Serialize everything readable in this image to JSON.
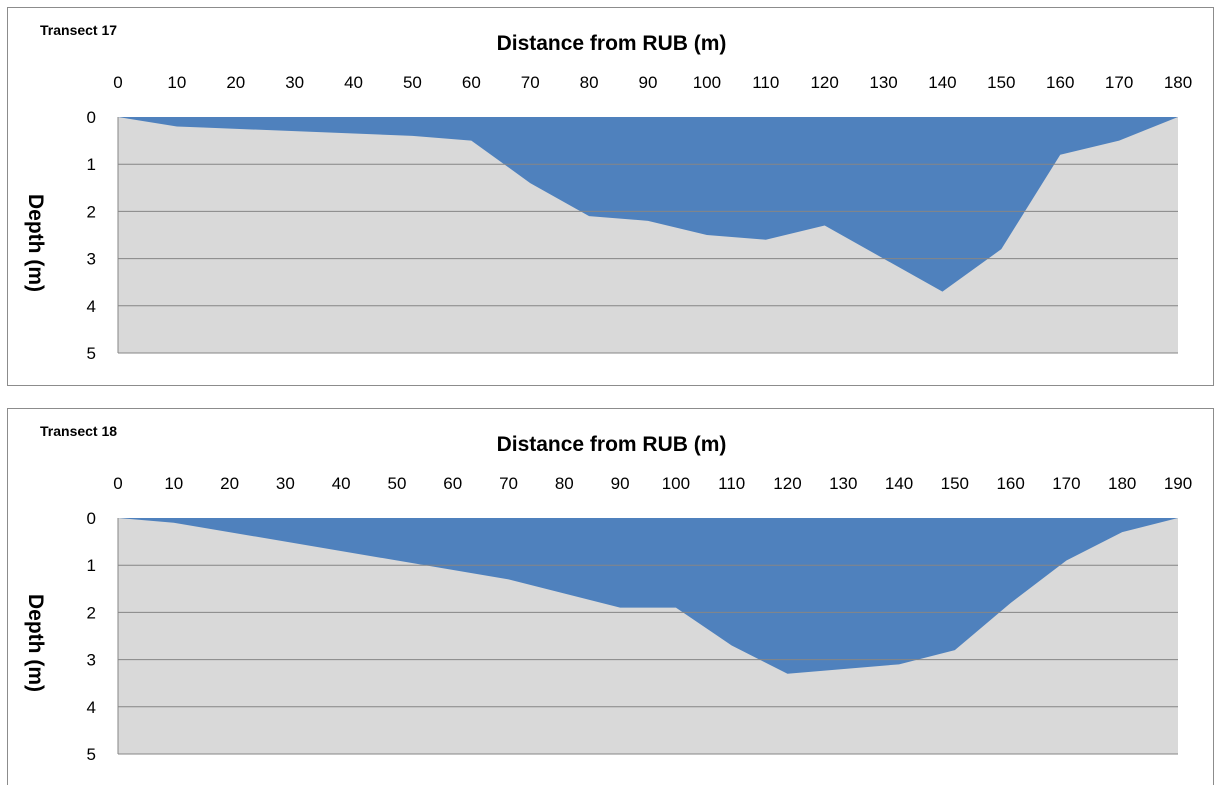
{
  "colors": {
    "water": "#4f81bd",
    "ground": "#d9d9d9",
    "gridline": "#868686",
    "text": "#000000"
  },
  "chart_data": [
    {
      "type": "area",
      "transect_label": "Transect 17",
      "xlabel": "Distance from RUB (m)",
      "ylabel": "Depth (m)",
      "xlim": [
        0,
        180
      ],
      "ylim": [
        0,
        5
      ],
      "x_ticks": [
        0,
        10,
        20,
        30,
        40,
        50,
        60,
        70,
        80,
        90,
        100,
        110,
        120,
        130,
        140,
        150,
        160,
        170,
        180
      ],
      "y_ticks": [
        0,
        1,
        2,
        3,
        4,
        5
      ],
      "y_reversed": true,
      "x_axis_position": "top",
      "grid": true,
      "series": [
        {
          "x": [
            0,
            10,
            50,
            60,
            70,
            80,
            90,
            100,
            110,
            120,
            140,
            150,
            160,
            170,
            180
          ],
          "y": [
            0,
            0.2,
            0.4,
            0.5,
            1.4,
            2.1,
            2.2,
            2.5,
            2.6,
            2.3,
            3.7,
            2.8,
            0.8,
            0.5,
            0
          ]
        }
      ]
    },
    {
      "type": "area",
      "transect_label": "Transect 18",
      "xlabel": "Distance from RUB (m)",
      "ylabel": "Depth (m)",
      "xlim": [
        0,
        190
      ],
      "ylim": [
        0,
        5
      ],
      "x_ticks": [
        0,
        10,
        20,
        30,
        40,
        50,
        60,
        70,
        80,
        90,
        100,
        110,
        120,
        130,
        140,
        150,
        160,
        170,
        180,
        190
      ],
      "y_ticks": [
        0,
        1,
        2,
        3,
        4,
        5
      ],
      "y_reversed": true,
      "x_axis_position": "top",
      "grid": true,
      "series": [
        {
          "x": [
            0,
            10,
            70,
            90,
            100,
            110,
            120,
            140,
            150,
            160,
            170,
            180,
            190
          ],
          "y": [
            0,
            0.1,
            1.3,
            1.9,
            1.9,
            2.7,
            3.3,
            3.1,
            2.8,
            1.8,
            0.9,
            0.3,
            0
          ]
        }
      ]
    }
  ]
}
